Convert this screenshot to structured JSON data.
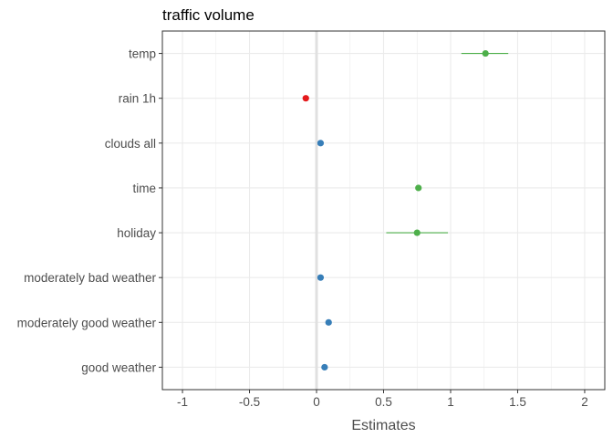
{
  "chart_data": {
    "type": "scatter",
    "title": "traffic volume",
    "xlabel": "Estimates",
    "ylabel": "",
    "xlim": [
      -1.15,
      2.15
    ],
    "x_ticks": [
      -1,
      -0.5,
      0,
      0.5,
      1,
      1.5,
      2
    ],
    "x_tick_labels": [
      "-1",
      "-0.5",
      "0",
      "0.5",
      "1",
      "1.5",
      "2"
    ],
    "grid": true,
    "legend": "none",
    "reference_line": 0,
    "colors": {
      "positive_significant": "#4daf4a",
      "negative_significant": "#e41a1c",
      "not_significant": "#377eb8",
      "reference_line": "#e0e0e0",
      "grid": "#ebebeb"
    },
    "terms": [
      {
        "label": "temp",
        "estimate": 1.26,
        "conf_low": 1.08,
        "conf_high": 1.43,
        "group": "positive_significant"
      },
      {
        "label": "rain 1h",
        "estimate": -0.08,
        "conf_low": -0.1,
        "conf_high": -0.06,
        "group": "negative_significant"
      },
      {
        "label": "clouds all",
        "estimate": 0.03,
        "conf_low": 0.02,
        "conf_high": 0.04,
        "group": "not_significant"
      },
      {
        "label": "time",
        "estimate": 0.76,
        "conf_low": 0.74,
        "conf_high": 0.78,
        "group": "positive_significant"
      },
      {
        "label": "holiday",
        "estimate": 0.75,
        "conf_low": 0.52,
        "conf_high": 0.98,
        "group": "positive_significant"
      },
      {
        "label": "moderately bad weather",
        "estimate": 0.03,
        "conf_low": 0.01,
        "conf_high": 0.05,
        "group": "not_significant"
      },
      {
        "label": "moderately good weather",
        "estimate": 0.09,
        "conf_low": 0.07,
        "conf_high": 0.11,
        "group": "not_significant"
      },
      {
        "label": "good weather",
        "estimate": 0.06,
        "conf_low": 0.04,
        "conf_high": 0.08,
        "group": "not_significant"
      }
    ]
  }
}
